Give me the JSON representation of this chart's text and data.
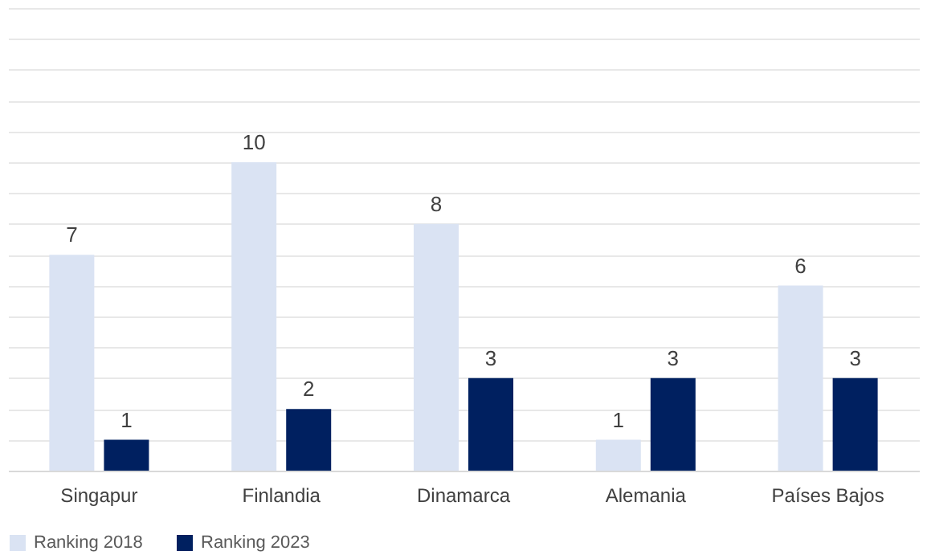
{
  "chart_data": {
    "type": "bar",
    "categories": [
      "Singapur",
      "Finlandia",
      "Dinamarca",
      "Alemania",
      "Países Bajos"
    ],
    "series": [
      {
        "name": "Ranking 2018",
        "color": "#dae3f3",
        "values": [
          7,
          10,
          8,
          1,
          6
        ]
      },
      {
        "name": "Ranking 2023",
        "color": "#002060",
        "values": [
          1,
          2,
          3,
          3,
          3
        ]
      }
    ],
    "ylim": [
      0,
      15
    ],
    "yticks": [
      {
        "value": 0,
        "label": null
      },
      {
        "value": 1,
        "label": null
      },
      {
        "value": 2,
        "label": null
      },
      {
        "value": 3,
        "label": null
      },
      {
        "value": 4,
        "label": null
      },
      {
        "value": 5,
        "label": null
      },
      {
        "value": 6,
        "label": null
      },
      {
        "value": 7,
        "label": null
      },
      {
        "value": 8,
        "label": null
      },
      {
        "value": 9,
        "label": null
      },
      {
        "value": 10,
        "label": null
      },
      {
        "value": 11,
        "label": null
      },
      {
        "value": 12,
        "label": null
      },
      {
        "value": 13,
        "label": null
      },
      {
        "value": 14,
        "label": null
      },
      {
        "value": 15,
        "label": null
      }
    ],
    "tick_labels": "x",
    "grid": "y",
    "data_labels": true,
    "legend": "bottom"
  }
}
